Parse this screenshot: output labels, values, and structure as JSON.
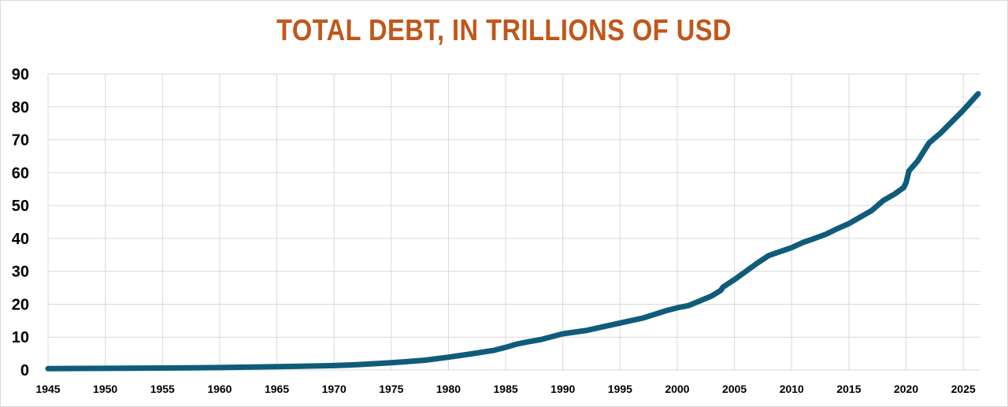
{
  "chart_data": {
    "type": "line",
    "title": "TOTAL DEBT, IN TRILLIONS OF USD",
    "xlabel": "",
    "ylabel": "",
    "xlim": [
      1945,
      2026.5
    ],
    "ylim": [
      0,
      90
    ],
    "grid": true,
    "legend": "none",
    "x_ticks": [
      1945,
      1950,
      1955,
      1960,
      1965,
      1970,
      1975,
      1980,
      1985,
      1990,
      1995,
      2000,
      2005,
      2010,
      2015,
      2020,
      2025
    ],
    "y_ticks": [
      0,
      10,
      20,
      30,
      40,
      50,
      60,
      70,
      80,
      90
    ],
    "series": [
      {
        "x": [
          1945,
          1950,
          1955,
          1960,
          1965,
          1970,
          1972,
          1975,
          1978,
          1980,
          1982,
          1984,
          1985,
          1986,
          1987,
          1988,
          1990,
          1992,
          1995,
          1997,
          1999,
          2000,
          2001,
          2003,
          2003.8,
          2004,
          2005,
          2006,
          2007,
          2008,
          2009,
          2010,
          2011,
          2012,
          2013,
          2014,
          2015,
          2016,
          2017,
          2018,
          2019,
          2019.8,
          2020,
          2020.25,
          2021,
          2022,
          2023,
          2024,
          2025,
          2026.3
        ],
        "y": [
          0.4,
          0.5,
          0.6,
          0.75,
          1.0,
          1.35,
          1.6,
          2.2,
          3.0,
          3.9,
          4.9,
          6.0,
          6.9,
          7.9,
          8.6,
          9.2,
          11.0,
          12.0,
          14.3,
          15.8,
          18.0,
          18.9,
          19.6,
          22.5,
          24.2,
          25.2,
          27.5,
          30.0,
          32.5,
          34.8,
          36.0,
          37.2,
          38.8,
          40.0,
          41.3,
          43.0,
          44.5,
          46.5,
          48.5,
          51.5,
          53.5,
          55.5,
          57.0,
          60.5,
          63.5,
          69.0,
          72.0,
          75.5,
          79.0,
          84.0
        ]
      }
    ],
    "colors": {
      "line": "#0f5c7a",
      "title": "#c0571b",
      "grid": "#d9d9d9"
    }
  }
}
